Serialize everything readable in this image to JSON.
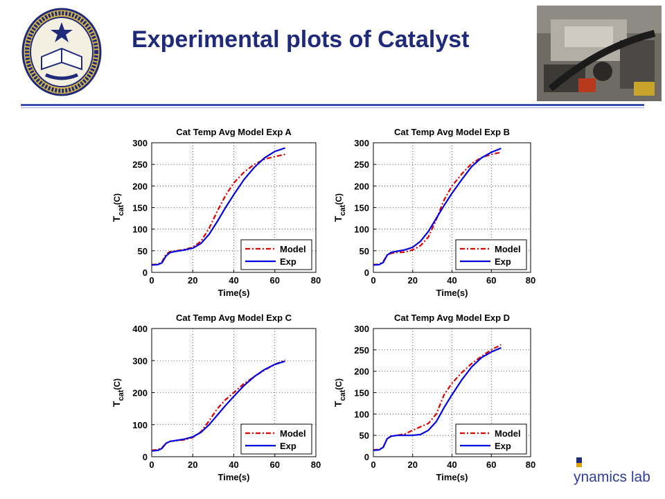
{
  "slide": {
    "title": "Experimental plots of Catalyst",
    "brand_text": "ynamics lab",
    "seal_icon": "university-of-california-seal-icon",
    "photo_icon": "engine-photo-icon",
    "accent_color": "#1f2a7a"
  },
  "chart_data": [
    {
      "type": "line",
      "title": "Cat Temp Avg Model Exp A",
      "xlabel": "Time(s)",
      "ylabel": "T_cat(C)",
      "xlim": [
        0,
        80
      ],
      "ylim": [
        0,
        300
      ],
      "xticks": [
        0,
        20,
        40,
        60,
        80
      ],
      "yticks": [
        0,
        50,
        100,
        150,
        200,
        250,
        300
      ],
      "grid": true,
      "legend_position": "bottom-right",
      "series": [
        {
          "name": "Model",
          "color": "#e00000",
          "style": "dash-dot",
          "x": [
            0,
            3,
            5,
            7,
            9,
            12,
            15,
            20,
            24,
            28,
            32,
            36,
            40,
            45,
            50,
            55,
            60,
            65
          ],
          "y": [
            18,
            19,
            24,
            42,
            48,
            50,
            52,
            58,
            72,
            102,
            142,
            178,
            207,
            232,
            250,
            262,
            268,
            273
          ]
        },
        {
          "name": "Exp",
          "color": "#0000e0",
          "style": "solid",
          "x": [
            0,
            3,
            5,
            7,
            9,
            12,
            15,
            20,
            24,
            28,
            32,
            36,
            40,
            45,
            50,
            55,
            60,
            65
          ],
          "y": [
            17,
            18,
            22,
            38,
            46,
            49,
            51,
            56,
            67,
            88,
            118,
            150,
            180,
            215,
            243,
            265,
            280,
            288
          ]
        }
      ]
    },
    {
      "type": "line",
      "title": "Cat Temp Avg Model Exp B",
      "xlabel": "Time(s)",
      "ylabel": "T_cat(C)",
      "xlim": [
        0,
        80
      ],
      "ylim": [
        0,
        300
      ],
      "xticks": [
        0,
        20,
        40,
        60,
        80
      ],
      "yticks": [
        0,
        50,
        100,
        150,
        200,
        250,
        300
      ],
      "grid": true,
      "legend_position": "bottom-right",
      "series": [
        {
          "name": "Model",
          "color": "#e00000",
          "style": "dash-dot",
          "x": [
            0,
            3,
            5,
            7,
            9,
            12,
            16,
            20,
            24,
            28,
            32,
            36,
            40,
            45,
            50,
            55,
            60,
            65
          ],
          "y": [
            18,
            19,
            25,
            40,
            44,
            46,
            47,
            52,
            62,
            82,
            122,
            168,
            200,
            228,
            252,
            266,
            273,
            278
          ]
        },
        {
          "name": "Exp",
          "color": "#0000e0",
          "style": "solid",
          "x": [
            0,
            3,
            5,
            7,
            9,
            12,
            16,
            20,
            24,
            28,
            32,
            36,
            40,
            45,
            50,
            55,
            60,
            65
          ],
          "y": [
            17,
            18,
            23,
            40,
            46,
            49,
            52,
            58,
            72,
            95,
            125,
            155,
            183,
            215,
            245,
            265,
            278,
            287
          ]
        }
      ]
    },
    {
      "type": "line",
      "title": "Cat Temp Avg Model Exp C",
      "xlabel": "Time(s)",
      "ylabel": "T_cat(C)",
      "xlim": [
        0,
        80
      ],
      "ylim": [
        0,
        400
      ],
      "xticks": [
        0,
        20,
        40,
        60,
        80
      ],
      "yticks": [
        0,
        100,
        200,
        300,
        400
      ],
      "grid": true,
      "legend_position": "bottom-right",
      "series": [
        {
          "name": "Model",
          "color": "#e00000",
          "style": "dash-dot",
          "x": [
            0,
            3,
            5,
            7,
            9,
            12,
            16,
            20,
            24,
            28,
            32,
            36,
            40,
            45,
            50,
            55,
            60,
            65
          ],
          "y": [
            20,
            22,
            28,
            42,
            48,
            50,
            53,
            60,
            78,
            112,
            150,
            178,
            200,
            228,
            250,
            270,
            288,
            302
          ]
        },
        {
          "name": "Exp",
          "color": "#0000e0",
          "style": "solid",
          "x": [
            0,
            3,
            5,
            7,
            9,
            12,
            16,
            20,
            24,
            28,
            32,
            36,
            40,
            45,
            50,
            55,
            60,
            65
          ],
          "y": [
            18,
            20,
            26,
            42,
            48,
            51,
            55,
            62,
            76,
            100,
            130,
            160,
            188,
            222,
            250,
            272,
            288,
            298
          ]
        }
      ]
    },
    {
      "type": "line",
      "title": "Cat Temp Avg Model Exp D",
      "xlabel": "Time(s)",
      "ylabel": "T_cat(C)",
      "xlim": [
        0,
        80
      ],
      "ylim": [
        0,
        300
      ],
      "xticks": [
        0,
        20,
        40,
        60,
        80
      ],
      "yticks": [
        0,
        50,
        100,
        150,
        200,
        250,
        300
      ],
      "grid": true,
      "legend_position": "bottom-right",
      "series": [
        {
          "name": "Model",
          "color": "#e00000",
          "style": "dash-dot",
          "x": [
            0,
            3,
            5,
            7,
            9,
            12,
            16,
            20,
            24,
            28,
            32,
            36,
            40,
            45,
            50,
            55,
            60,
            65
          ],
          "y": [
            16,
            17,
            22,
            42,
            48,
            50,
            53,
            62,
            70,
            78,
            100,
            145,
            172,
            197,
            218,
            235,
            250,
            262
          ]
        },
        {
          "name": "Exp",
          "color": "#0000e0",
          "style": "solid",
          "x": [
            0,
            3,
            5,
            7,
            9,
            12,
            16,
            20,
            24,
            28,
            32,
            36,
            40,
            45,
            50,
            55,
            60,
            65
          ],
          "y": [
            15,
            16,
            22,
            42,
            48,
            50,
            50,
            50,
            52,
            62,
            82,
            115,
            145,
            180,
            210,
            232,
            245,
            255
          ]
        }
      ]
    }
  ]
}
